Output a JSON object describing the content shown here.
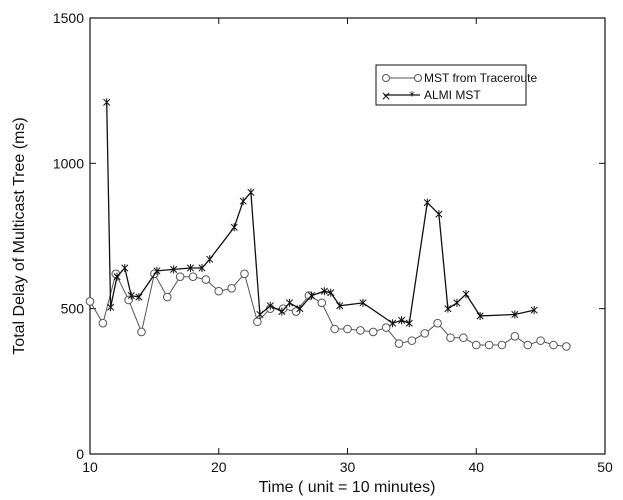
{
  "chart_data": {
    "type": "line",
    "title": "",
    "xlabel": "Time ( unit = 10 minutes)",
    "ylabel": "Total Delay of Multicast Tree (ms)",
    "xlim": [
      10,
      50
    ],
    "ylim": [
      0,
      1500
    ],
    "xticks": [
      "10",
      "20",
      "30",
      "40",
      "50"
    ],
    "yticks": [
      "0",
      "500",
      "1000",
      "1500"
    ],
    "grid": false,
    "legend_position": "top-right",
    "series": [
      {
        "name": "MST from Traceroute",
        "marker": "circle",
        "color": "#555555",
        "x": [
          10,
          11,
          12,
          13,
          14,
          15,
          16,
          17,
          18,
          19,
          20,
          21,
          22,
          23,
          24,
          25,
          26,
          27,
          28,
          29,
          30,
          31,
          32,
          33,
          34,
          35,
          36,
          37,
          38,
          39,
          40,
          41,
          42,
          43,
          44,
          45,
          46,
          47
        ],
        "y": [
          525,
          450,
          620,
          530,
          420,
          620,
          540,
          610,
          610,
          600,
          560,
          570,
          620,
          455,
          500,
          500,
          490,
          545,
          520,
          430,
          430,
          425,
          420,
          435,
          380,
          390,
          415,
          450,
          400,
          400,
          375,
          375,
          375,
          405,
          375,
          390,
          375,
          370
        ]
      },
      {
        "name": "ALMI MST",
        "marker": "asterisk",
        "color": "#111111",
        "x": [
          11.3,
          11.6,
          12.1,
          12.7,
          13.2,
          13.8,
          15.2,
          16.5,
          17.8,
          18.7,
          19.3,
          21.2,
          21.9,
          22.5,
          23.2,
          24.0,
          24.9,
          25.5,
          26.3,
          27.2,
          28.2,
          28.7,
          29.4,
          31.2,
          33.5,
          34.2,
          34.8,
          36.2,
          37.1,
          37.8,
          38.5,
          39.2,
          40.3,
          43.0,
          44.5
        ],
        "y": [
          1210,
          505,
          610,
          640,
          545,
          540,
          630,
          635,
          640,
          640,
          670,
          780,
          870,
          900,
          480,
          510,
          490,
          520,
          500,
          545,
          560,
          555,
          510,
          520,
          450,
          460,
          450,
          865,
          825,
          500,
          520,
          550,
          475,
          480,
          495
        ]
      }
    ]
  }
}
